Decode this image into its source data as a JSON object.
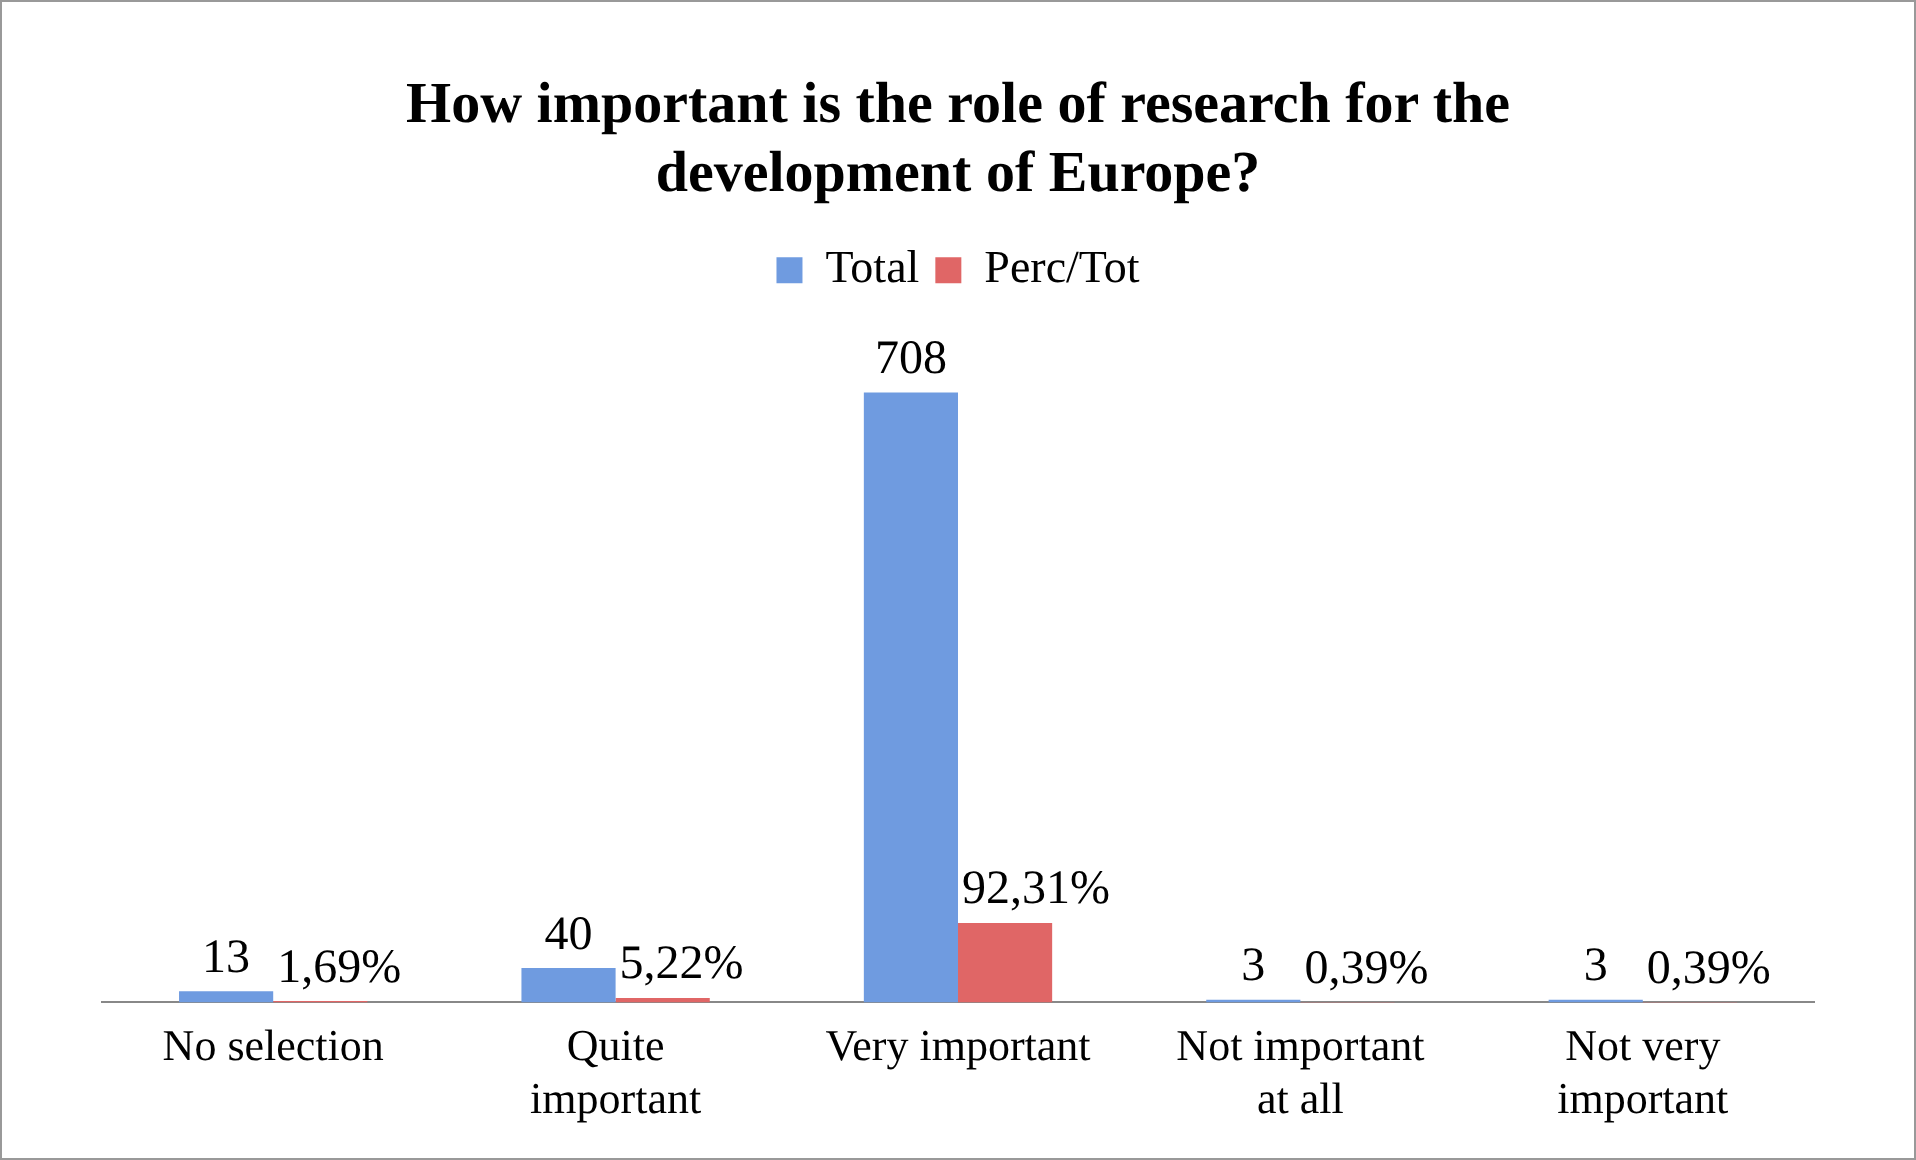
{
  "chart_data": {
    "type": "bar",
    "title": "How important is the role of research for the development of Europe?",
    "categories": [
      "No selection",
      "Quite important",
      "Very important",
      "Not important at all",
      "Not very important"
    ],
    "series": [
      {
        "name": "Total",
        "color": "#6f9be0",
        "values": [
          13,
          40,
          708,
          3,
          3
        ]
      },
      {
        "name": "Perc/Tot",
        "color": "#e06666",
        "values": [
          1.69,
          5.22,
          92.31,
          0.39,
          0.39
        ],
        "value_labels": [
          "1,69%",
          "5,22%",
          "92,31%",
          "0,39%",
          "0,39%"
        ]
      }
    ],
    "data_labels": true,
    "legend": "top",
    "grid": false
  }
}
